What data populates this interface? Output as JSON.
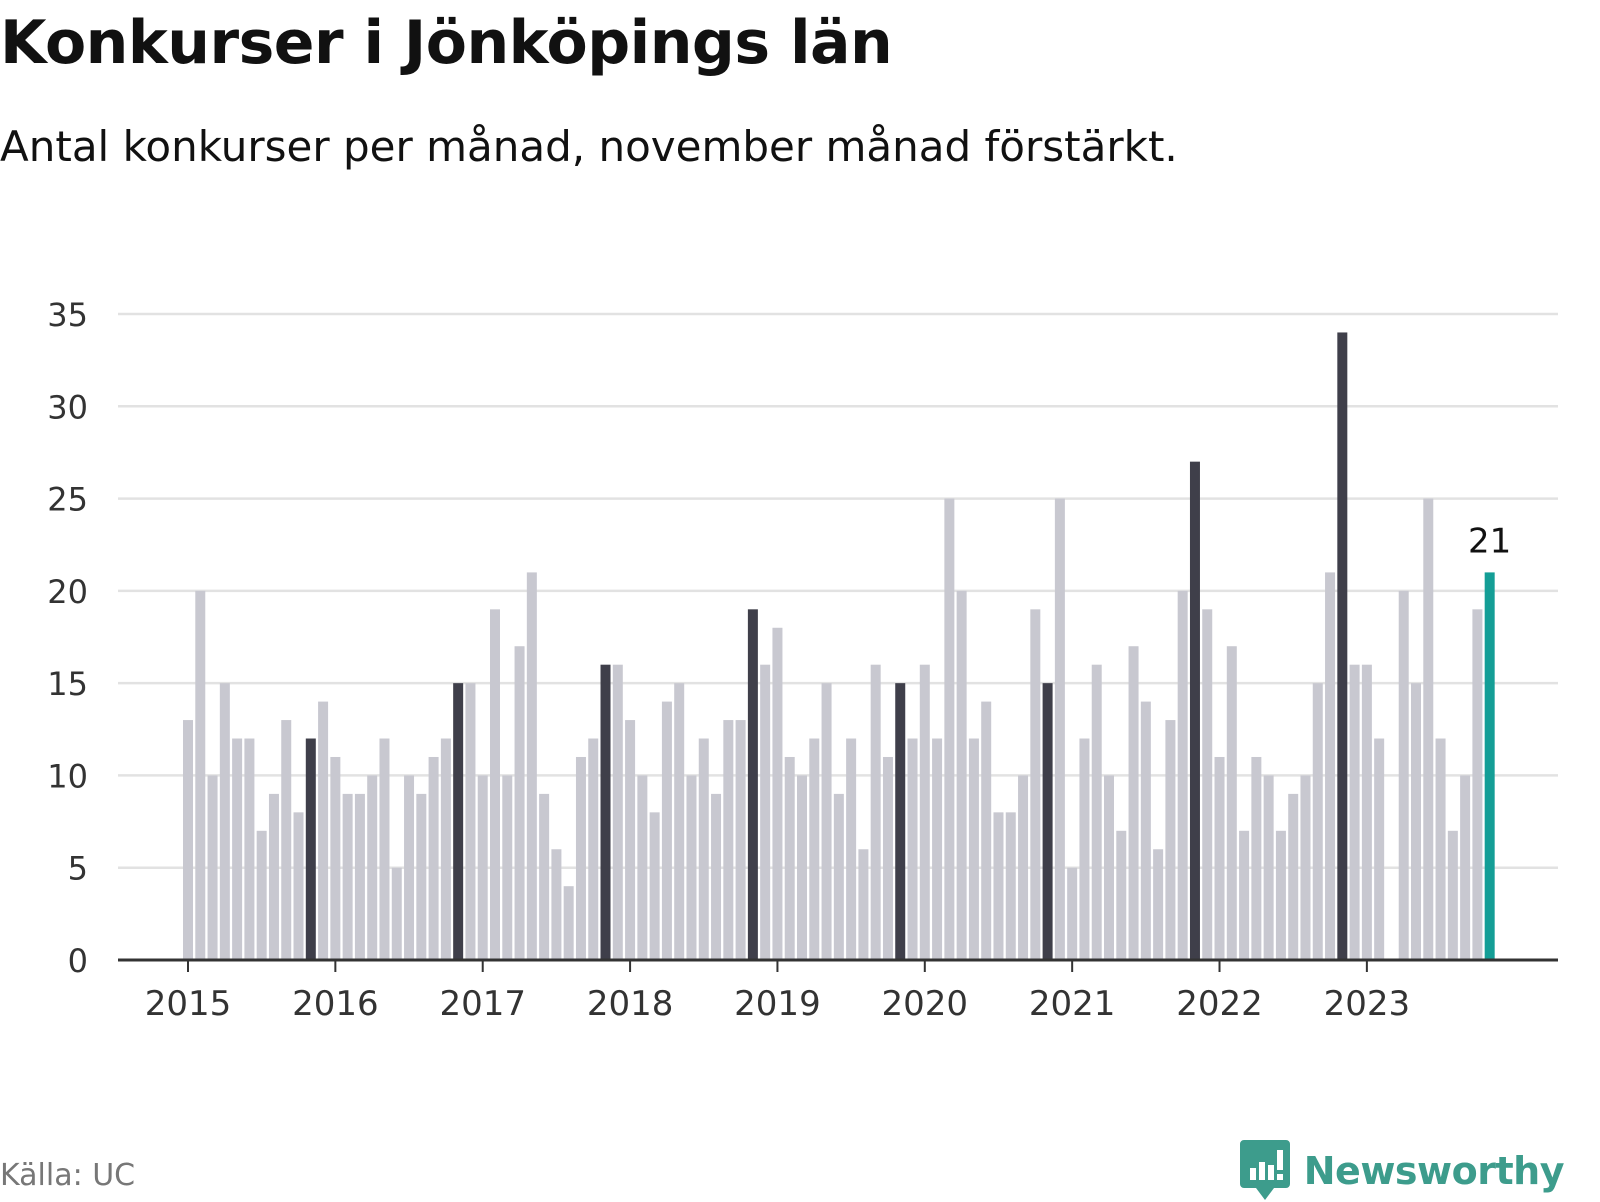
{
  "header": {
    "title": "Konkurser i Jönköpings län",
    "subtitle": "Antal konkurser per månad, november månad förstärkt."
  },
  "footer": {
    "source": "Källa: UC",
    "brand": "Newsworthy",
    "brand_icon": "newsworthy-logo-icon"
  },
  "colors": {
    "bar": "#c8c8d0",
    "november": "#3f3f4a",
    "latest": "#149e96",
    "grid": "#e2e2e2",
    "axis": "#333333",
    "brand": "#3d9c8c"
  },
  "chart_data": {
    "type": "bar",
    "title": "Konkurser i Jönköpings län",
    "subtitle": "Antal konkurser per månad, november månad förstärkt.",
    "x_start": "2015-01",
    "x_end": "2023-11",
    "highlight": "november",
    "x_tick_labels": [
      "2015",
      "2016",
      "2017",
      "2018",
      "2019",
      "2020",
      "2021",
      "2022",
      "2023"
    ],
    "y_ticks": [
      0,
      5,
      10,
      15,
      20,
      25,
      30,
      35
    ],
    "ylim": [
      0,
      35
    ],
    "grid": true,
    "series": [
      {
        "values": [
          13,
          20,
          10,
          15,
          12,
          12,
          7,
          9,
          13,
          8,
          12,
          14,
          11,
          9,
          9,
          10,
          12,
          5,
          10,
          9,
          11,
          12,
          15,
          15,
          10,
          19,
          10,
          17,
          21,
          9,
          6,
          4,
          11,
          12,
          16,
          16,
          13,
          10,
          8,
          14,
          15,
          10,
          12,
          9,
          13,
          13,
          19,
          16,
          18,
          11,
          10,
          12,
          15,
          9,
          12,
          6,
          16,
          11,
          15,
          12,
          16,
          12,
          25,
          20,
          12,
          14,
          8,
          8,
          10,
          19,
          15,
          25,
          5,
          12,
          16,
          10,
          7,
          17,
          14,
          6,
          13,
          20,
          27,
          19,
          11,
          17,
          7,
          11,
          10,
          7,
          9,
          10,
          15,
          21,
          34,
          16,
          16,
          12,
          0,
          20,
          15,
          25,
          12,
          7,
          10,
          19,
          21
        ]
      }
    ],
    "data_labels": [
      {
        "x": "2023-11",
        "value": "21"
      }
    ]
  }
}
